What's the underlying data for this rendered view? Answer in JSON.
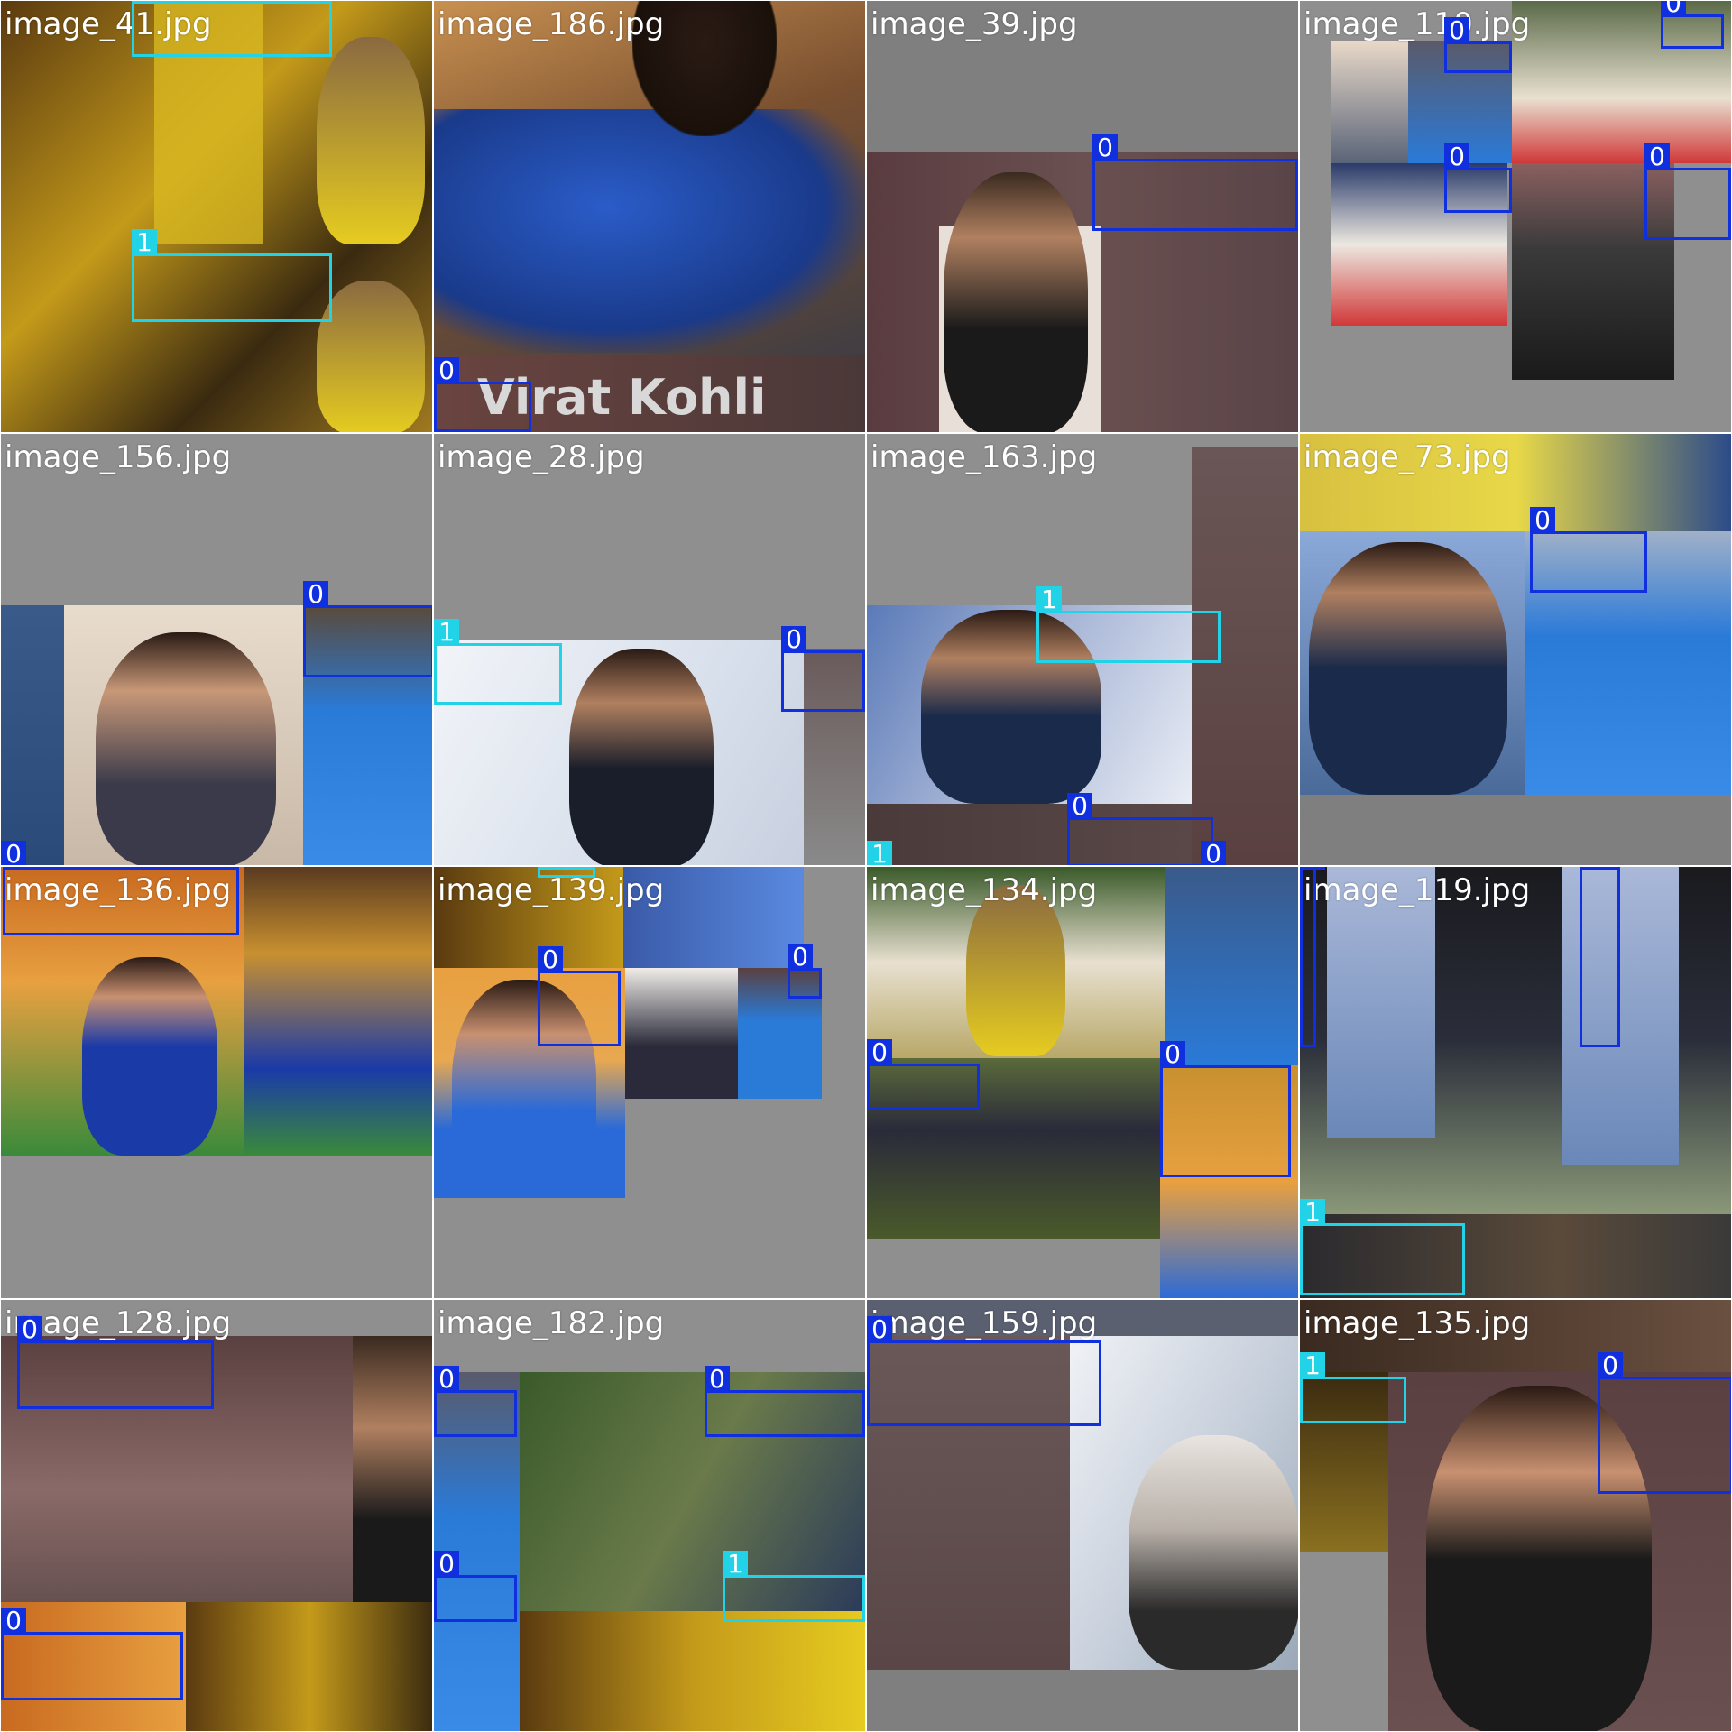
{
  "grid": {
    "rows": 4,
    "cols": 4,
    "box_colors": {
      "0": "#1030e0",
      "1": "#22d2e6"
    },
    "tiles": [
      {
        "label": "image_41.jpg",
        "boxes": [
          "1",
          "1"
        ]
      },
      {
        "label": "image_186.jpg",
        "overlay_text": "Virat Kohli",
        "boxes": [
          "0"
        ]
      },
      {
        "label": "image_39.jpg",
        "boxes": [
          "0"
        ]
      },
      {
        "label": "image_110.jpg",
        "boxes": [
          "0",
          "0",
          "0",
          "0"
        ]
      },
      {
        "label": "image_156.jpg",
        "boxes": [
          "0",
          "0"
        ]
      },
      {
        "label": "image_28.jpg",
        "boxes": [
          "1",
          "0"
        ]
      },
      {
        "label": "image_163.jpg",
        "boxes": [
          "1",
          "0",
          "1",
          "0"
        ]
      },
      {
        "label": "image_73.jpg",
        "boxes": [
          "0"
        ]
      },
      {
        "label": "image_136.jpg",
        "boxes": [
          "0"
        ]
      },
      {
        "label": "image_139.jpg",
        "boxes": [
          "1",
          "0",
          "0"
        ]
      },
      {
        "label": "image_134.jpg",
        "boxes": [
          "0",
          "0"
        ]
      },
      {
        "label": "image_119.jpg",
        "boxes": [
          "0",
          "0",
          "1"
        ]
      },
      {
        "label": "image_128.jpg",
        "boxes": [
          "0",
          "0"
        ]
      },
      {
        "label": "image_182.jpg",
        "boxes": [
          "0",
          "0",
          "0",
          "1"
        ]
      },
      {
        "label": "image_159.jpg",
        "boxes": [
          "0"
        ]
      },
      {
        "label": "image_135.jpg",
        "boxes": [
          "1",
          "0"
        ]
      }
    ]
  }
}
